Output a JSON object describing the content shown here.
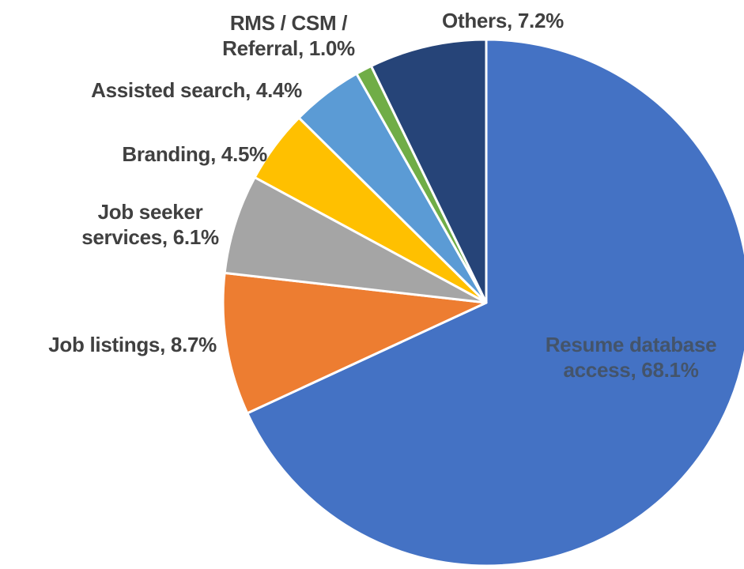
{
  "chart_data": {
    "type": "pie",
    "labels": [
      "Resume database access, 68.1%",
      "Job listings, 8.7%",
      "Job seeker services, 6.1%",
      "Branding, 4.5%",
      "Assisted search, 4.4%",
      "RMS / CSM / Referral, 1.0%",
      "Others, 7.2%"
    ],
    "values": [
      68.1,
      8.7,
      6.1,
      4.5,
      4.4,
      1.0,
      7.2
    ],
    "colors": [
      "#4472c4",
      "#ed7d31",
      "#a5a5a5",
      "#ffc000",
      "#5b9bd5",
      "#70ad47",
      "#264478"
    ]
  }
}
